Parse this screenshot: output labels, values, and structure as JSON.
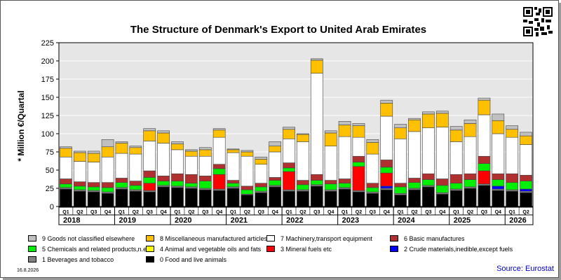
{
  "chart_data": {
    "type": "bar",
    "stacked": true,
    "title": "The Structure of Denmark's Export to United Arab Emirates",
    "ylabel": "* Million €/Quartal",
    "ylim": [
      0,
      225
    ],
    "yticks": [
      0,
      25,
      50,
      75,
      100,
      125,
      150,
      175,
      200,
      225
    ],
    "grid": true,
    "legend_position": "bottom",
    "quarters": [
      "Q1",
      "Q2",
      "Q3",
      "Q4",
      "Q1",
      "Q2",
      "Q3",
      "Q4",
      "Q1",
      "Q2",
      "Q3",
      "Q4",
      "Q1",
      "Q2",
      "Q3",
      "Q4",
      "Q1",
      "Q2",
      "Q3",
      "Q4",
      "Q1",
      "Q2",
      "Q3",
      "Q4",
      "Q1",
      "Q2",
      "Q3",
      "Q4",
      "Q1",
      "Q2",
      "Q3",
      "Q4",
      "Q1",
      "Q2"
    ],
    "years": [
      {
        "label": "2018",
        "start": 0,
        "count": 4
      },
      {
        "label": "2019",
        "start": 4,
        "count": 4
      },
      {
        "label": "2020",
        "start": 8,
        "count": 4
      },
      {
        "label": "2021",
        "start": 12,
        "count": 4
      },
      {
        "label": "2022",
        "start": 16,
        "count": 4
      },
      {
        "label": "2023",
        "start": 20,
        "count": 4
      },
      {
        "label": "2024",
        "start": 24,
        "count": 4
      },
      {
        "label": "2025",
        "start": 28,
        "count": 4
      },
      {
        "label": "2026",
        "start": 32,
        "count": 2
      }
    ],
    "series": [
      {
        "name": "0 Food and live animals",
        "color": "#000000",
        "values": [
          24,
          21,
          20,
          18,
          24,
          21,
          20,
          27,
          26,
          25,
          23,
          22,
          25,
          16,
          19,
          27,
          21,
          21,
          28,
          21,
          24,
          20,
          18,
          23,
          16,
          23,
          27,
          17,
          22,
          25,
          29,
          22,
          21,
          19
        ]
      },
      {
        "name": "1 Beverages and tobacco",
        "color": "#808080",
        "values": [
          2,
          2,
          2,
          2,
          2,
          2,
          2,
          2,
          2,
          2,
          2,
          2,
          2,
          1,
          2,
          2,
          2,
          2,
          2,
          2,
          2,
          2,
          2,
          2,
          2,
          2,
          2,
          2,
          2,
          2,
          2,
          2,
          2,
          2
        ]
      },
      {
        "name": "2 Crude materials,inedible,except fuels",
        "color": "#0000ff",
        "values": [
          0,
          0,
          0,
          0,
          0,
          0,
          0,
          0,
          0,
          0,
          0,
          0,
          0,
          0,
          0,
          0,
          0,
          0,
          0,
          0,
          0,
          0,
          0,
          3,
          0,
          0,
          0,
          0,
          0,
          0,
          0,
          4,
          0,
          3
        ]
      },
      {
        "name": "3 Mineral fuels etc",
        "color": "#ff0000",
        "values": [
          0,
          0,
          0,
          0,
          0,
          0,
          10,
          0,
          0,
          0,
          0,
          20,
          0,
          0,
          0,
          0,
          25,
          0,
          0,
          0,
          0,
          33,
          0,
          18,
          0,
          0,
          0,
          0,
          0,
          0,
          18,
          0,
          0,
          0
        ]
      },
      {
        "name": "4 Animal and vegetable oils and fats",
        "color": "#ffff00",
        "values": [
          0,
          0,
          0,
          0,
          0,
          0,
          0,
          0,
          0,
          0,
          0,
          0,
          0,
          0,
          0,
          0,
          0,
          0,
          0,
          0,
          0,
          0,
          0,
          0,
          0,
          0,
          0,
          0,
          0,
          0,
          0,
          0,
          0,
          0
        ]
      },
      {
        "name": "5 Chemicals and related products,n.e.s.",
        "color": "#00ee00",
        "values": [
          5,
          5,
          5,
          6,
          7,
          6,
          8,
          6,
          7,
          5,
          10,
          8,
          5,
          6,
          6,
          7,
          5,
          7,
          6,
          8,
          6,
          6,
          6,
          8,
          9,
          8,
          8,
          10,
          8,
          10,
          10,
          9,
          10,
          11
        ]
      },
      {
        "name": "6 Basic manufactures",
        "color": "#b03030",
        "values": [
          7,
          6,
          6,
          7,
          6,
          6,
          9,
          7,
          10,
          12,
          7,
          6,
          4,
          5,
          5,
          4,
          7,
          6,
          8,
          5,
          6,
          8,
          6,
          10,
          5,
          6,
          8,
          9,
          12,
          8,
          10,
          8,
          12,
          8
        ]
      },
      {
        "name": "7 Machinery,transport equipment",
        "color": "#ffffff",
        "values": [
          30,
          28,
          28,
          35,
          34,
          37,
          41,
          45,
          33,
          25,
          27,
          37,
          38,
          41,
          26,
          35,
          33,
          53,
          139,
          47,
          58,
          26,
          40,
          60,
          61,
          64,
          63,
          71,
          45,
          51,
          57,
          55,
          50,
          42
        ]
      },
      {
        "name": "8 Miscellaneous manufactured articles",
        "color": "#ffc000",
        "values": [
          12,
          12,
          12,
          14,
          14,
          9,
          14,
          14,
          8,
          7,
          9,
          10,
          4,
          6,
          7,
          8,
          13,
          10,
          18,
          18,
          16,
          16,
          16,
          18,
          15,
          16,
          19,
          19,
          16,
          18,
          20,
          18,
          11,
          12
        ]
      },
      {
        "name": "9 Goods not classified elsewhere",
        "color": "#c0c0c0",
        "values": [
          2,
          2,
          3,
          10,
          2,
          2,
          3,
          3,
          3,
          2,
          3,
          2,
          1,
          2,
          3,
          6,
          3,
          1,
          2,
          3,
          5,
          3,
          4,
          4,
          5,
          2,
          3,
          3,
          5,
          5,
          3,
          9,
          5,
          5
        ]
      }
    ]
  },
  "legend_order": [
    9,
    8,
    7,
    6,
    5,
    4,
    3,
    2,
    1,
    0
  ],
  "footer": {
    "date": "16.8.2026",
    "source": "Source: Eurostat"
  }
}
